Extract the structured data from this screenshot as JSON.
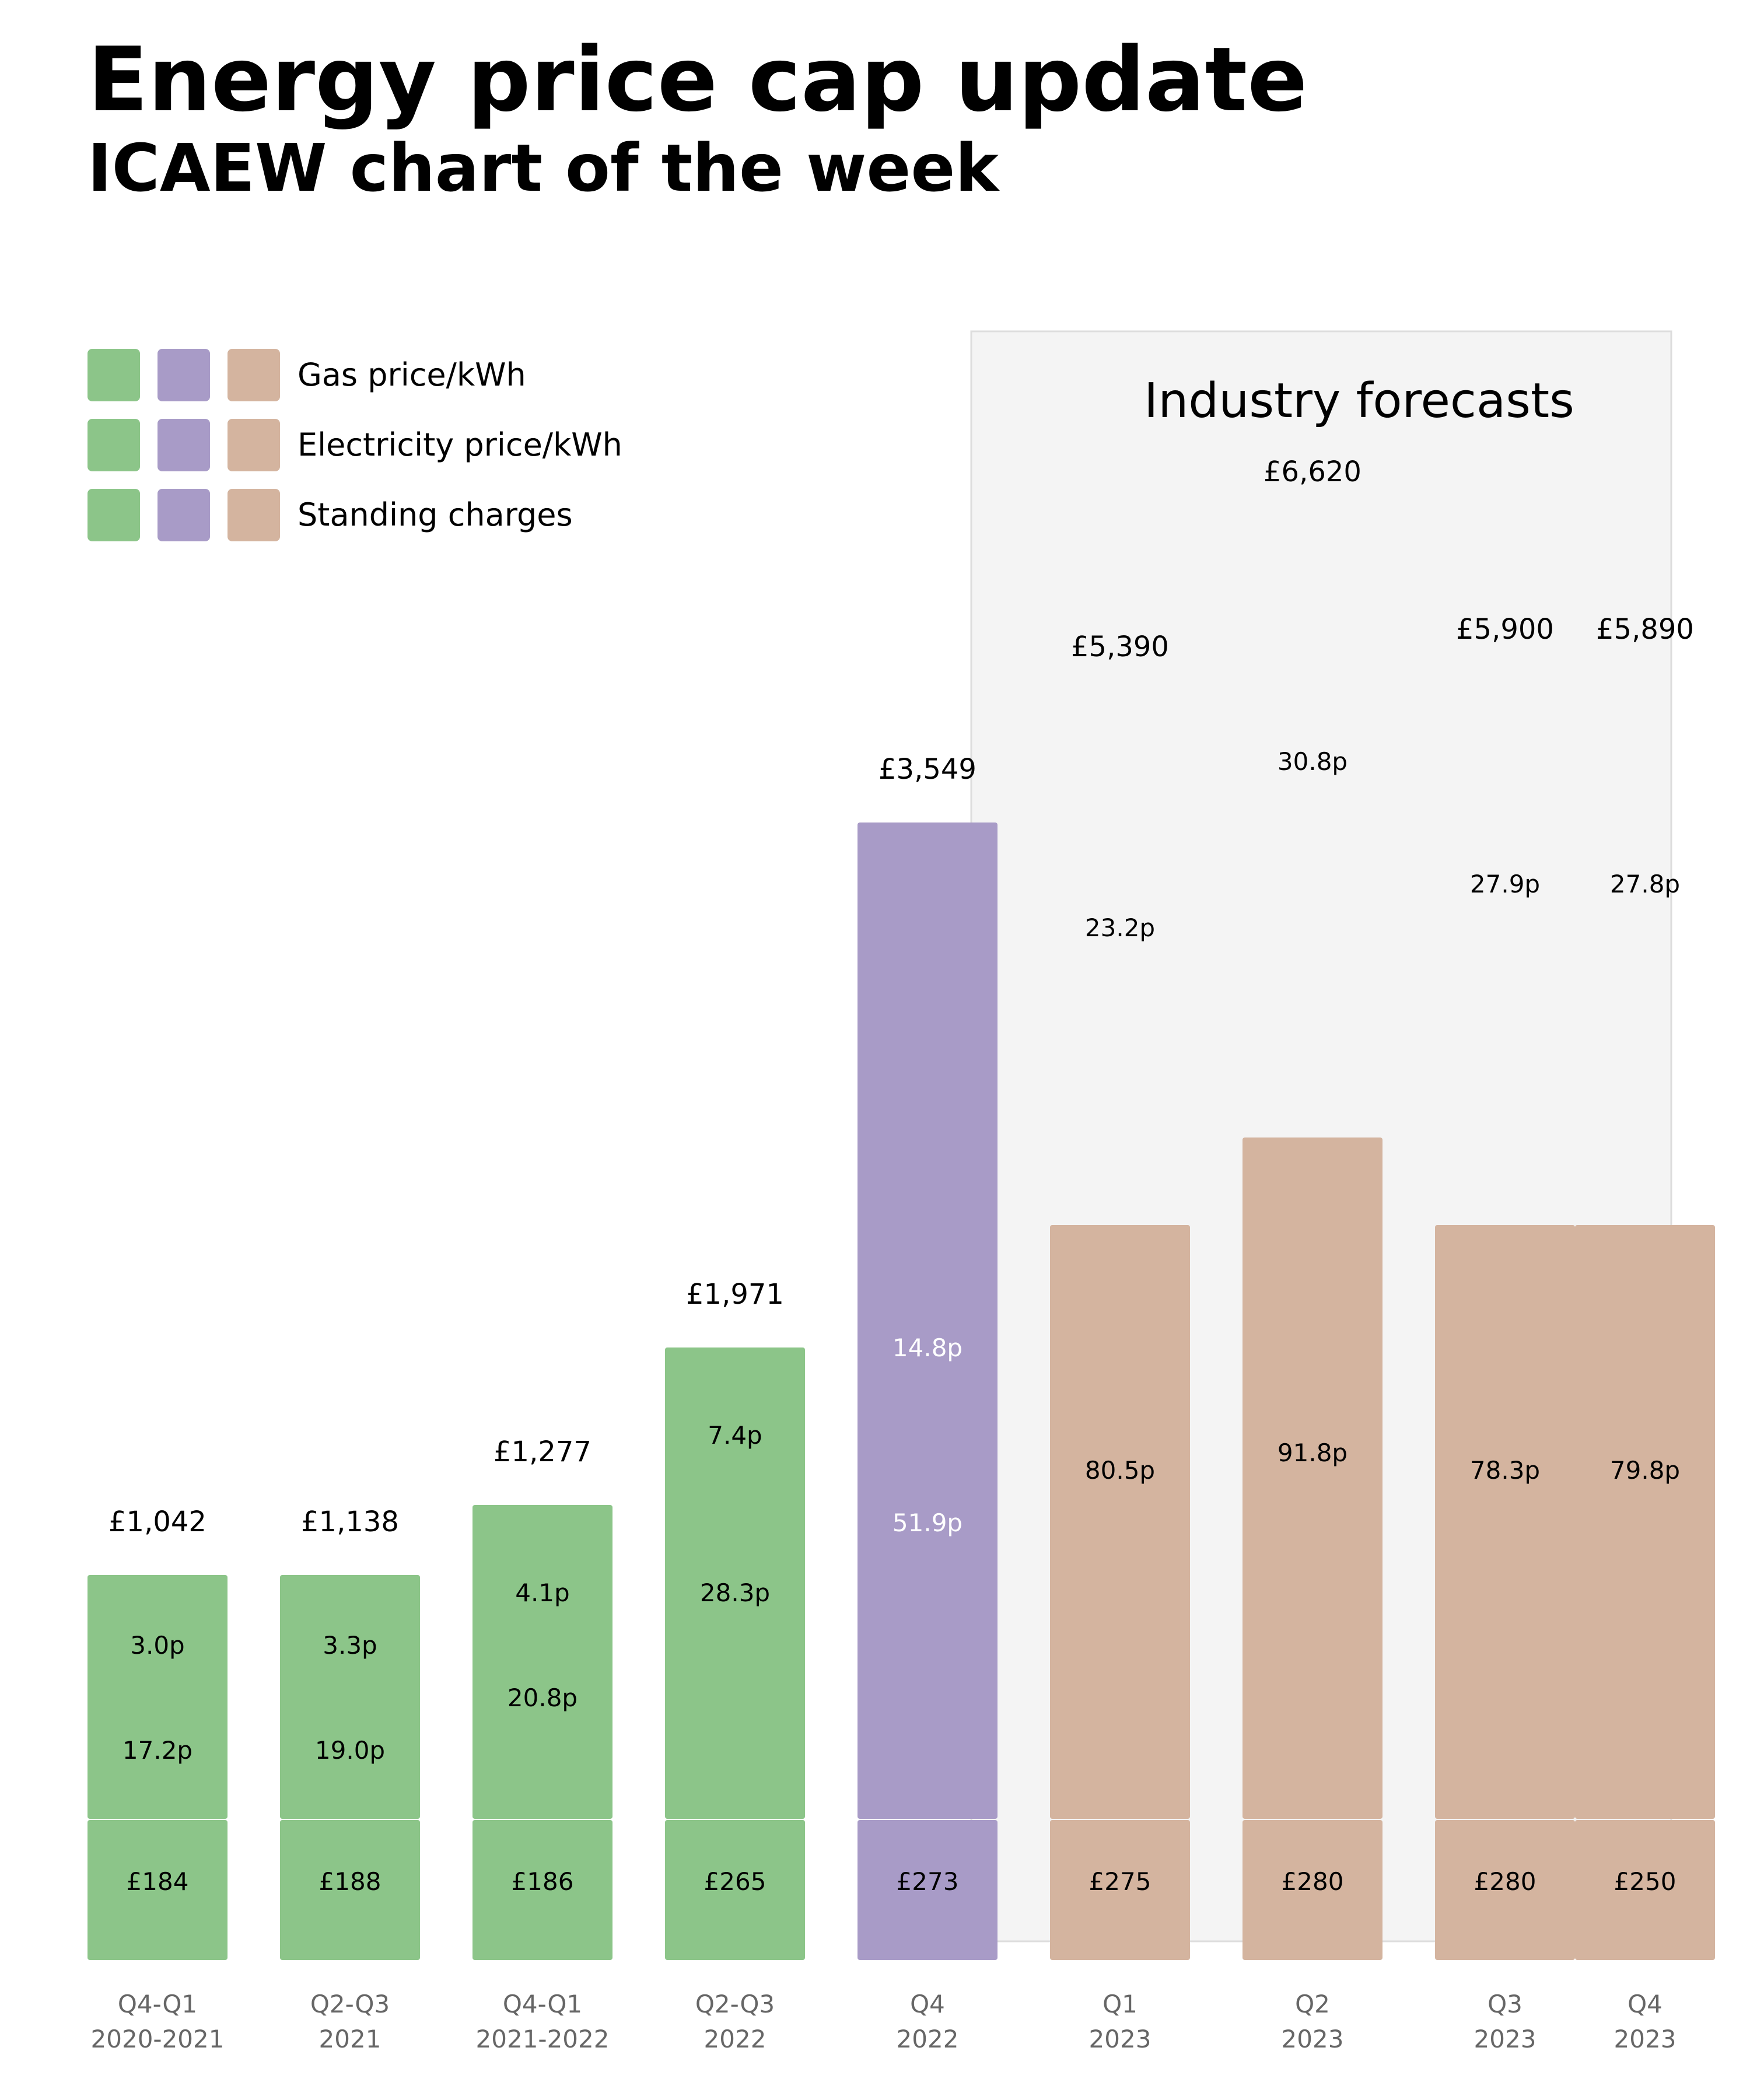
{
  "title": "Energy price cap update",
  "subtitle": "ICAEW chart of the week",
  "colors": {
    "actual": "#8cc589",
    "current": "#a89bc7",
    "forecast": "#d4b49f",
    "forecast_panel": "#f4f4f4",
    "forecast_panel_border": "#dddddd",
    "axis_label": "#666666"
  },
  "chart_data": {
    "type": "bar",
    "title": "Energy price cap update",
    "subtitle": "ICAEW chart of the week",
    "legend": {
      "placement": "top-left",
      "entries": [
        "Gas price/kWh",
        "Electricity price/kWh",
        "Standing charges"
      ],
      "swatch_colors": [
        "#8cc589",
        "#a89bc7",
        "#d4b49f"
      ]
    },
    "forecast_panel_label": "Industry forecasts",
    "categories": [
      [
        "Q4-Q1",
        "2020-2021"
      ],
      [
        "Q2-Q3",
        "2021"
      ],
      [
        "Q4-Q1",
        "2021-2022"
      ],
      [
        "Q2-Q3",
        "2022"
      ],
      [
        "Q4",
        "2022"
      ],
      [
        "Q1",
        "2023"
      ],
      [
        "Q2",
        "2023"
      ],
      [
        "Q3",
        "2023"
      ],
      [
        "Q4",
        "2023"
      ]
    ],
    "series_kind": [
      "actual",
      "actual",
      "actual",
      "actual",
      "current",
      "forecast",
      "forecast",
      "forecast",
      "forecast"
    ],
    "totals": [
      1042,
      1138,
      1277,
      1971,
      3549,
      5390,
      6620,
      5900,
      5890
    ],
    "total_labels": [
      "£1,042",
      "£1,138",
      "£1,277",
      "£1,971",
      "£3,549",
      "£5,390",
      "£6,620",
      "£5,900",
      "£5,890"
    ],
    "gas_price_labels": [
      "3.0p",
      "3.3p",
      "4.1p",
      "7.4p",
      "14.8p",
      "23.2p",
      "30.8p",
      "27.9p",
      "27.8p"
    ],
    "electricity_price_labels": [
      "17.2p",
      "19.0p",
      "20.8p",
      "28.3p",
      "51.9p",
      "80.5p",
      "91.8p",
      "78.3p",
      "79.8p"
    ],
    "standing_charges": [
      184,
      188,
      186,
      265,
      273,
      275,
      280,
      280,
      250
    ],
    "standing_charge_labels": [
      "£184",
      "£188",
      "£186",
      "£265",
      "£273",
      "£275",
      "£280",
      "£280",
      "£250"
    ],
    "ylim": [
      0,
      6620
    ],
    "grid": false,
    "xlabel": "",
    "ylabel": ""
  }
}
